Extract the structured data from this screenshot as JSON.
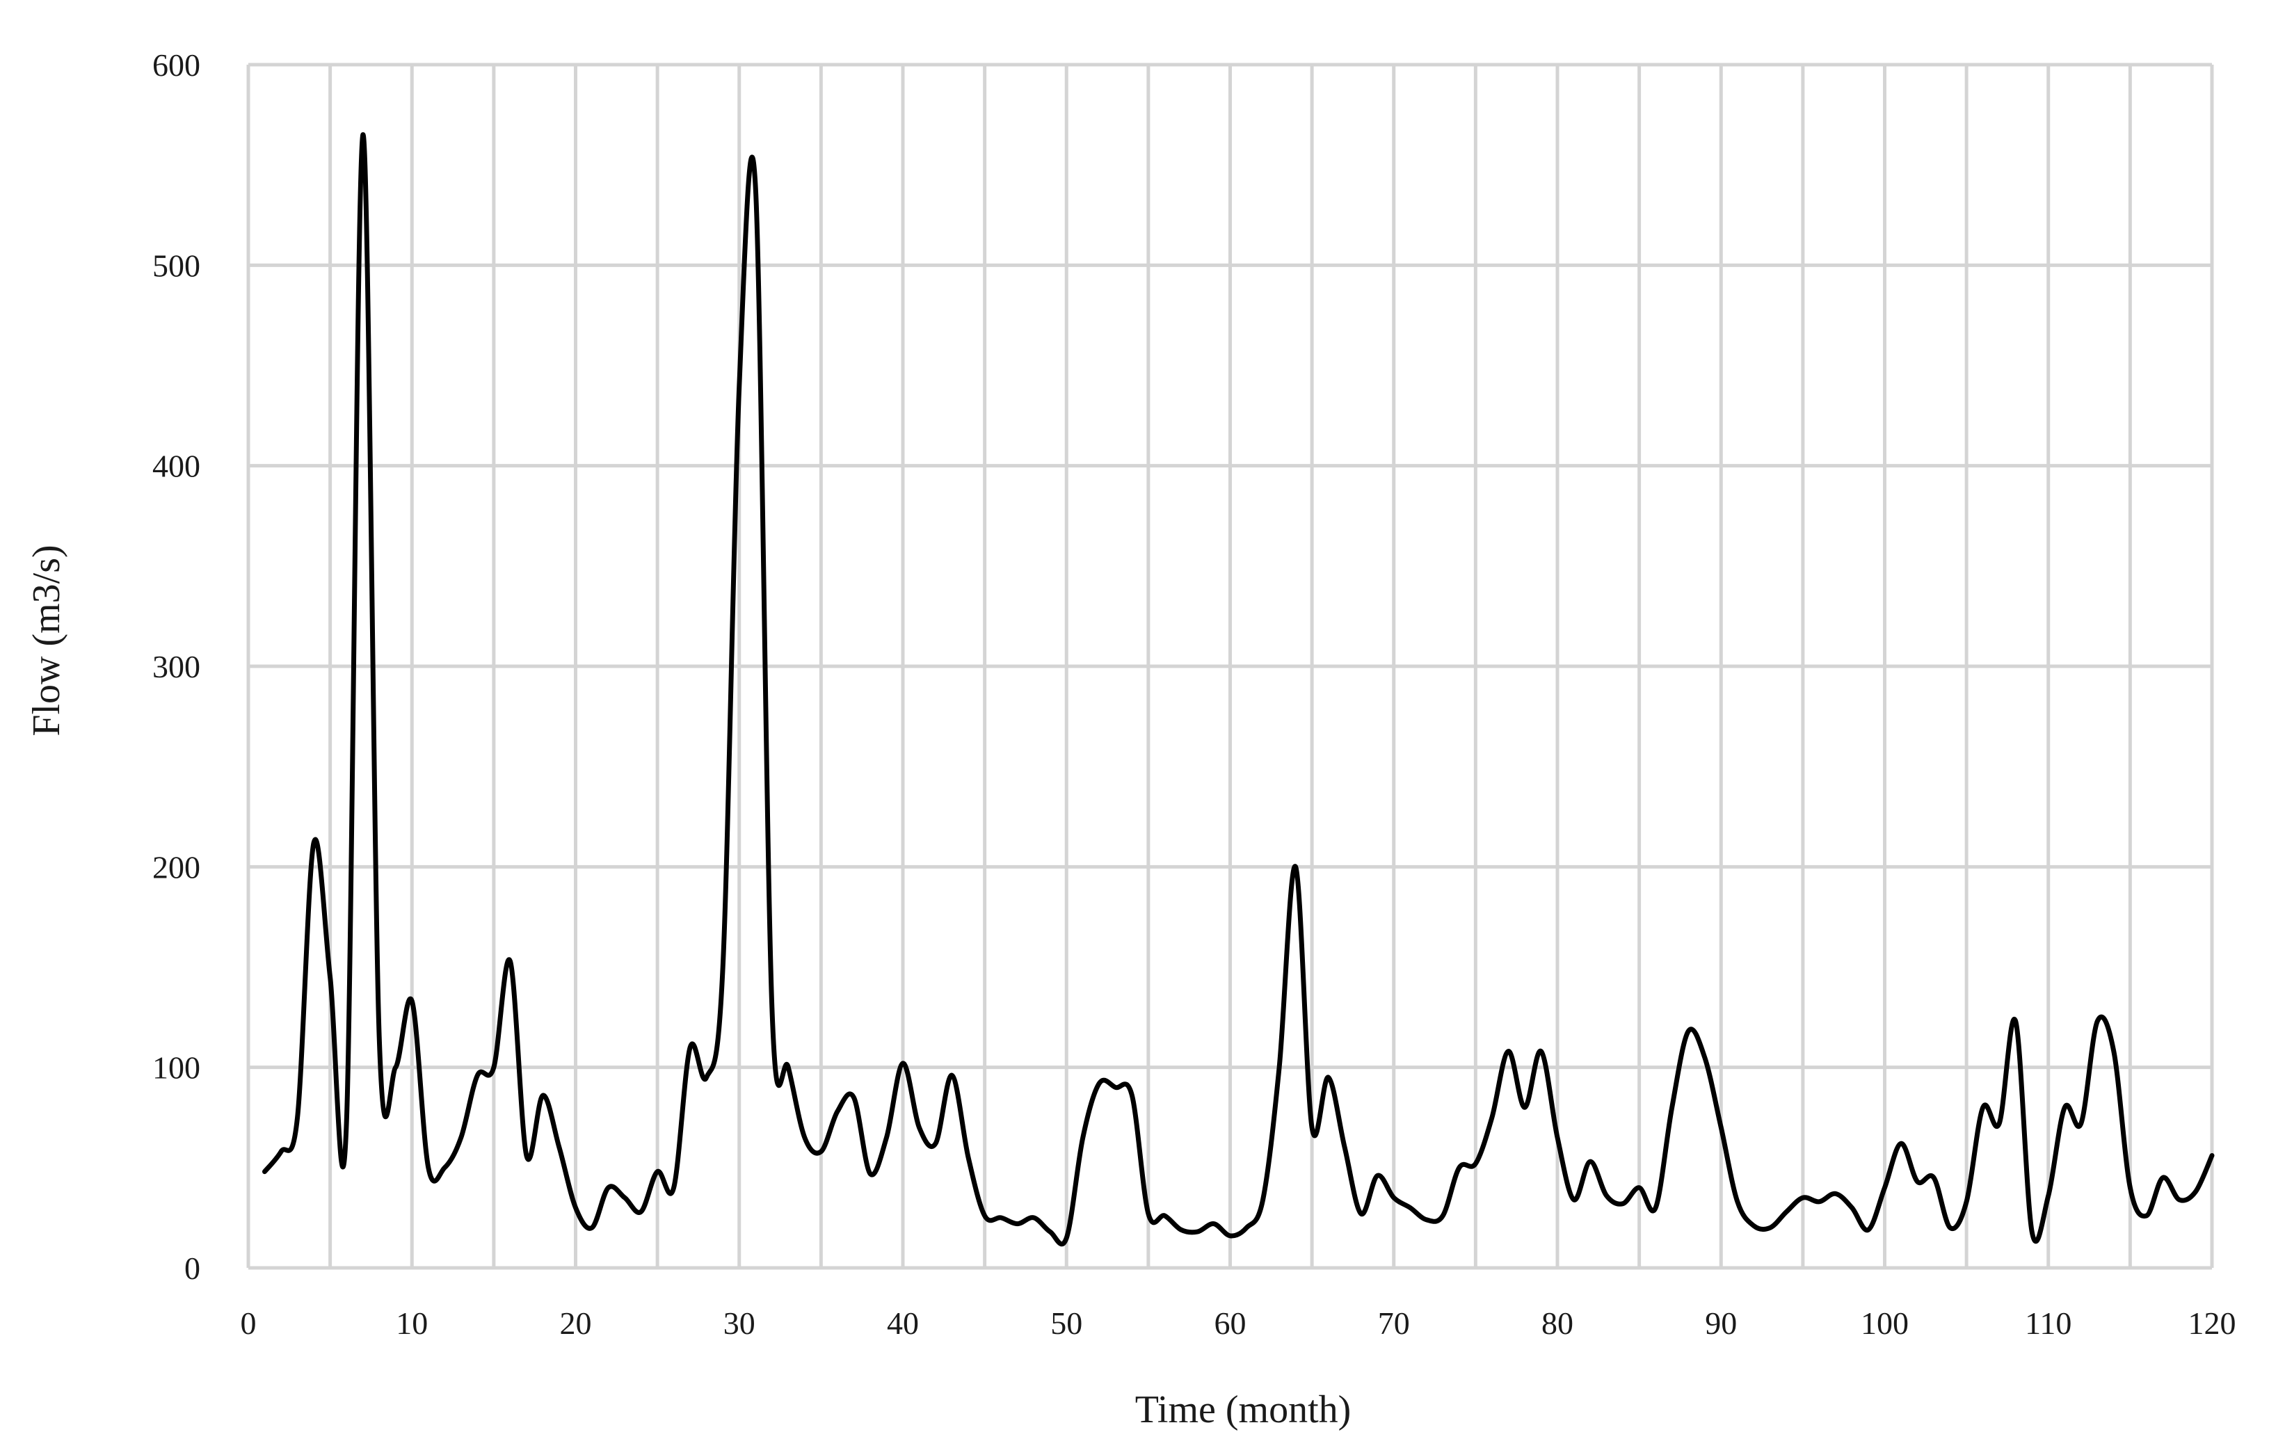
{
  "chart_data": {
    "type": "line",
    "title": "",
    "xlabel": "Time (month)",
    "ylabel": "Flow (m3/s)",
    "xlim": [
      0,
      120
    ],
    "ylim": [
      0,
      600
    ],
    "xticks": [
      0,
      10,
      20,
      30,
      40,
      50,
      60,
      70,
      80,
      90,
      100,
      110,
      120
    ],
    "yticks": [
      0,
      100,
      200,
      300,
      400,
      500,
      600
    ],
    "x_gridline_step": 5,
    "grid": true,
    "legend": "none",
    "line_color": "#000000",
    "grid_color": "#d4d4d4",
    "series": [
      {
        "x": [
          1,
          2,
          3,
          4,
          5,
          6,
          7,
          8,
          9,
          10,
          11,
          12,
          13,
          14,
          15,
          16,
          17,
          18,
          19,
          20,
          21,
          22,
          23,
          24,
          25,
          26,
          27,
          28,
          29,
          30,
          31,
          32,
          33,
          34,
          35,
          36,
          37,
          38,
          39,
          40,
          41,
          42,
          43,
          44,
          45,
          46,
          47,
          48,
          49,
          50,
          51,
          52,
          53,
          54,
          55,
          56,
          57,
          58,
          59,
          60,
          61,
          62,
          63,
          64,
          65,
          66,
          67,
          68,
          69,
          70,
          71,
          72,
          73,
          74,
          75,
          76,
          77,
          78,
          79,
          80,
          81,
          82,
          83,
          84,
          85,
          86,
          87,
          88,
          89,
          90,
          91,
          92,
          93,
          94,
          95,
          96,
          97,
          98,
          99,
          100,
          101,
          102,
          103,
          104,
          105,
          106,
          107,
          108,
          109,
          110,
          111,
          112,
          113,
          114,
          115,
          116,
          117,
          118,
          119,
          120
        ],
        "y": [
          48,
          58,
          75,
          212,
          145,
          72,
          565,
          115,
          100,
          133,
          50,
          50,
          65,
          96,
          100,
          153,
          56,
          86,
          60,
          30,
          20,
          40,
          35,
          28,
          48,
          40,
          110,
          95,
          150,
          440,
          538,
          130,
          100,
          65,
          58,
          78,
          85,
          47,
          65,
          102,
          70,
          62,
          96,
          55,
          26,
          25,
          22,
          25,
          18,
          15,
          65,
          92,
          90,
          86,
          27,
          26,
          19,
          18,
          22,
          16,
          20,
          34,
          100,
          200,
          70,
          95,
          60,
          27,
          46,
          35,
          30,
          24,
          26,
          50,
          52,
          75,
          108,
          80,
          108,
          65,
          34,
          53,
          36,
          32,
          40,
          30,
          80,
          118,
          105,
          70,
          33,
          21,
          20,
          28,
          35,
          33,
          37,
          30,
          19,
          40,
          62,
          43,
          45,
          20,
          33,
          80,
          72,
          123,
          18,
          36,
          80,
          72,
          123,
          108,
          40,
          26,
          45,
          34,
          38,
          56
        ]
      }
    ]
  }
}
